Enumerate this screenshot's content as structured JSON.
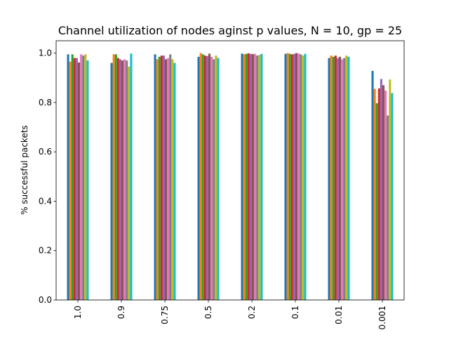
{
  "chart_data": {
    "type": "bar",
    "title": "Channel utilization of nodes aginst p values, N = 10, gp = 25",
    "xlabel": "",
    "ylabel": "% successful packets",
    "ylim": [
      0,
      1.05
    ],
    "yticks": [
      "0.0",
      "0.2",
      "0.4",
      "0.6",
      "0.8",
      "1.0"
    ],
    "categories": [
      "1.0",
      "0.9",
      "0.75",
      "0.5",
      "0.2",
      "0.1",
      "0.01",
      "0.001"
    ],
    "grid": false,
    "legend": "none",
    "colors": [
      "#1f77b4",
      "#ff7f0e",
      "#2ca02c",
      "#d62728",
      "#9467bd",
      "#8c564b",
      "#e377c2",
      "#7f7f7f",
      "#bcbd22",
      "#17becf"
    ],
    "series": [
      {
        "values": [
          0.995,
          0.96,
          0.995,
          0.985,
          0.998,
          0.997,
          0.98,
          0.928
        ]
      },
      {
        "values": [
          0.965,
          0.995,
          0.975,
          1.0,
          0.995,
          1.0,
          0.99,
          0.855
        ]
      },
      {
        "values": [
          0.995,
          0.995,
          0.985,
          0.995,
          0.997,
          0.997,
          0.985,
          0.797
        ]
      },
      {
        "values": [
          0.98,
          0.98,
          0.99,
          0.99,
          0.999,
          0.995,
          0.99,
          0.857
        ]
      },
      {
        "values": [
          0.98,
          0.975,
          0.99,
          0.988,
          0.997,
          0.997,
          0.98,
          0.895
        ]
      },
      {
        "values": [
          0.962,
          0.97,
          0.975,
          0.998,
          0.996,
          1.0,
          0.985,
          0.87
        ]
      },
      {
        "values": [
          0.995,
          0.975,
          0.98,
          0.985,
          0.997,
          0.998,
          0.975,
          0.848
        ]
      },
      {
        "values": [
          0.99,
          0.97,
          0.995,
          0.975,
          0.99,
          0.995,
          0.98,
          0.747
        ]
      },
      {
        "values": [
          0.995,
          0.945,
          0.975,
          0.99,
          0.993,
          0.99,
          0.99,
          0.893
        ]
      },
      {
        "values": [
          0.97,
          0.998,
          0.96,
          0.98,
          0.997,
          0.997,
          0.985,
          0.838
        ]
      }
    ]
  }
}
